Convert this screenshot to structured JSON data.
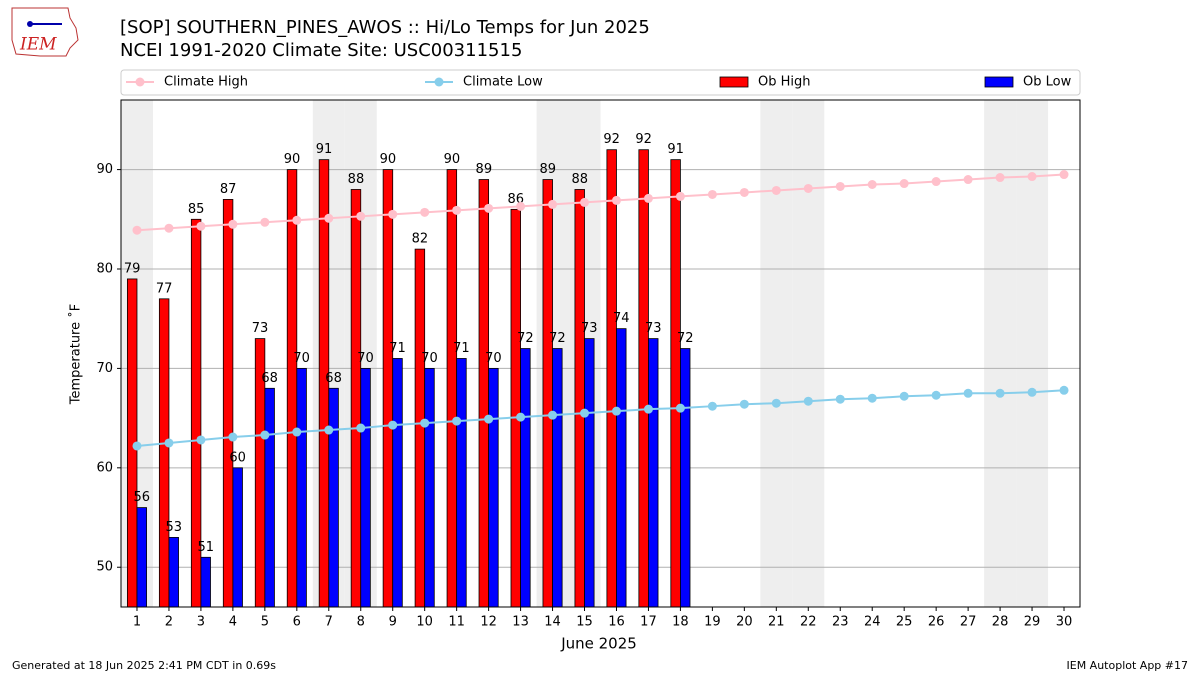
{
  "logo_text": "IEM",
  "footer_left": "Generated at 18 Jun 2025 2:41 PM CDT in 0.69s",
  "footer_right": "IEM Autoplot App #17",
  "chart_data": {
    "type": "bar",
    "title": "[SOP] SOUTHERN_PINES_AWOS :: Hi/Lo Temps for Jun 2025",
    "subtitle": "NCEI 1991-2020 Climate Site: USC00311515",
    "x_label": "June 2025",
    "y_label": "Temperature ˚F",
    "x": [
      1,
      2,
      3,
      4,
      5,
      6,
      7,
      8,
      9,
      10,
      11,
      12,
      13,
      14,
      15,
      16,
      17,
      18,
      19,
      20,
      21,
      22,
      23,
      24,
      25,
      26,
      27,
      28,
      29,
      30
    ],
    "xlim": [
      0.5,
      30.5
    ],
    "xticks": [
      1,
      2,
      3,
      4,
      5,
      6,
      7,
      8,
      9,
      10,
      11,
      12,
      13,
      14,
      15,
      16,
      17,
      18,
      19,
      20,
      21,
      22,
      23,
      24,
      25,
      26,
      27,
      28,
      29,
      30
    ],
    "ylim": [
      46,
      97
    ],
    "yticks": [
      50,
      60,
      70,
      80,
      90
    ],
    "grid": true,
    "shaded_days": [
      1,
      7,
      8,
      14,
      15,
      21,
      22,
      28,
      29
    ],
    "legend": "top",
    "series": [
      {
        "name": "Climate High",
        "type": "line",
        "color": "#ffc0cb",
        "values": [
          83.9,
          84.1,
          84.3,
          84.5,
          84.7,
          84.9,
          85.1,
          85.3,
          85.5,
          85.7,
          85.9,
          86.1,
          86.3,
          86.5,
          86.7,
          86.9,
          87.1,
          87.3,
          87.5,
          87.7,
          87.9,
          88.1,
          88.3,
          88.5,
          88.6,
          88.8,
          89.0,
          89.2,
          89.3,
          89.5
        ]
      },
      {
        "name": "Climate Low",
        "type": "line",
        "color": "#87ceeb",
        "values": [
          62.2,
          62.5,
          62.8,
          63.1,
          63.3,
          63.6,
          63.8,
          64.0,
          64.3,
          64.5,
          64.7,
          64.9,
          65.1,
          65.3,
          65.5,
          65.7,
          65.9,
          66.0,
          66.2,
          66.4,
          66.5,
          66.7,
          66.9,
          67.0,
          67.2,
          67.3,
          67.5,
          67.5,
          67.6,
          67.8
        ]
      },
      {
        "name": "Ob High",
        "type": "bar",
        "color": "#ff0000",
        "values": [
          79,
          77,
          85,
          87,
          73,
          90,
          91,
          88,
          90,
          82,
          90,
          89,
          86,
          89,
          88,
          92,
          92,
          91,
          null,
          null,
          null,
          null,
          null,
          null,
          null,
          null,
          null,
          null,
          null,
          null
        ]
      },
      {
        "name": "Ob Low",
        "type": "bar",
        "color": "#0000ff",
        "values": [
          56,
          53,
          51,
          60,
          68,
          70,
          68,
          70,
          71,
          70,
          71,
          70,
          72,
          72,
          73,
          74,
          73,
          72,
          null,
          null,
          null,
          null,
          null,
          null,
          null,
          null,
          null,
          null,
          null,
          null
        ]
      }
    ]
  }
}
